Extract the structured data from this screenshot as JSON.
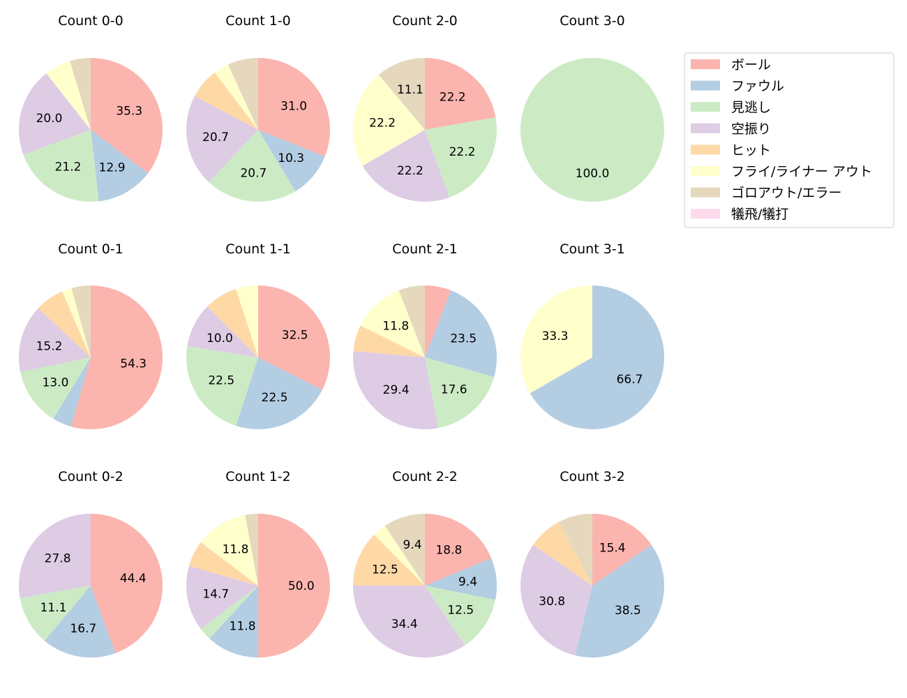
{
  "colors": {
    "ball": "#fbb4ae",
    "foul": "#b3cde3",
    "called_strike": "#ccebc5",
    "swinging_strike": "#decbe4",
    "hit": "#fed9a6",
    "fly_liner_out": "#ffffcc",
    "grounder_error": "#e5d8bd",
    "sacrifice": "#fddaec"
  },
  "legend": {
    "items": [
      {
        "key": "ball",
        "label": "ボール"
      },
      {
        "key": "foul",
        "label": "ファウル"
      },
      {
        "key": "called_strike",
        "label": "見逃し"
      },
      {
        "key": "swinging_strike",
        "label": "空振り"
      },
      {
        "key": "hit",
        "label": "ヒット"
      },
      {
        "key": "fly_liner_out",
        "label": "フライ/ライナー アウト"
      },
      {
        "key": "grounder_error",
        "label": "ゴロアウト/エラー"
      },
      {
        "key": "sacrifice",
        "label": "犠飛/犠打"
      }
    ]
  },
  "chart_data": [
    {
      "type": "pie",
      "title": "Count 0-0",
      "categories": [
        "ball",
        "foul",
        "called_strike",
        "swinging_strike",
        "hit",
        "fly_liner_out",
        "grounder_error",
        "sacrifice"
      ],
      "values": [
        35.3,
        12.9,
        21.2,
        20.0,
        0,
        5.9,
        4.7,
        0
      ],
      "labels": [
        "35.3",
        "12.9",
        "21.2",
        "20.0",
        "",
        "",
        "",
        ""
      ]
    },
    {
      "type": "pie",
      "title": "Count 1-0",
      "categories": [
        "ball",
        "foul",
        "called_strike",
        "swinging_strike",
        "hit",
        "fly_liner_out",
        "grounder_error",
        "sacrifice"
      ],
      "values": [
        31.0,
        10.3,
        20.7,
        20.7,
        6.9,
        3.4,
        6.9,
        0
      ],
      "labels": [
        "31.0",
        "10.3",
        "20.7",
        "20.7",
        "",
        "",
        "",
        ""
      ]
    },
    {
      "type": "pie",
      "title": "Count 2-0",
      "categories": [
        "ball",
        "foul",
        "called_strike",
        "swinging_strike",
        "hit",
        "fly_liner_out",
        "grounder_error",
        "sacrifice"
      ],
      "values": [
        22.2,
        0,
        22.2,
        22.2,
        0,
        22.2,
        11.1,
        0
      ],
      "labels": [
        "22.2",
        "",
        "22.2",
        "22.2",
        "",
        "22.2",
        "11.1",
        ""
      ]
    },
    {
      "type": "pie",
      "title": "Count 3-0",
      "categories": [
        "ball",
        "foul",
        "called_strike",
        "swinging_strike",
        "hit",
        "fly_liner_out",
        "grounder_error",
        "sacrifice"
      ],
      "values": [
        0,
        0,
        100.0,
        0,
        0,
        0,
        0,
        0
      ],
      "labels": [
        "",
        "",
        "100.0",
        "",
        "",
        "",
        "",
        ""
      ]
    },
    {
      "type": "pie",
      "title": "Count 0-1",
      "categories": [
        "ball",
        "foul",
        "called_strike",
        "swinging_strike",
        "hit",
        "fly_liner_out",
        "grounder_error",
        "sacrifice"
      ],
      "values": [
        54.3,
        4.3,
        13.0,
        15.2,
        6.5,
        2.2,
        4.3,
        0
      ],
      "labels": [
        "54.3",
        "",
        "13.0",
        "15.2",
        "",
        "",
        "",
        ""
      ]
    },
    {
      "type": "pie",
      "title": "Count 1-1",
      "categories": [
        "ball",
        "foul",
        "called_strike",
        "swinging_strike",
        "hit",
        "fly_liner_out",
        "grounder_error",
        "sacrifice"
      ],
      "values": [
        32.5,
        22.5,
        22.5,
        10.0,
        7.5,
        5.0,
        0,
        0
      ],
      "labels": [
        "32.5",
        "22.5",
        "22.5",
        "10.0",
        "",
        "",
        "",
        ""
      ]
    },
    {
      "type": "pie",
      "title": "Count 2-1",
      "categories": [
        "ball",
        "foul",
        "called_strike",
        "swinging_strike",
        "hit",
        "fly_liner_out",
        "grounder_error",
        "sacrifice"
      ],
      "values": [
        5.9,
        23.5,
        17.6,
        29.4,
        5.9,
        11.8,
        5.9,
        0
      ],
      "labels": [
        "",
        "23.5",
        "17.6",
        "29.4",
        "",
        "11.8",
        "",
        ""
      ]
    },
    {
      "type": "pie",
      "title": "Count 3-1",
      "categories": [
        "ball",
        "foul",
        "called_strike",
        "swinging_strike",
        "hit",
        "fly_liner_out",
        "grounder_error",
        "sacrifice"
      ],
      "values": [
        0,
        66.7,
        0,
        0,
        0,
        33.3,
        0,
        0
      ],
      "labels": [
        "",
        "66.7",
        "",
        "",
        "",
        "33.3",
        "",
        ""
      ]
    },
    {
      "type": "pie",
      "title": "Count 0-2",
      "categories": [
        "ball",
        "foul",
        "called_strike",
        "swinging_strike",
        "hit",
        "fly_liner_out",
        "grounder_error",
        "sacrifice"
      ],
      "values": [
        44.4,
        16.7,
        11.1,
        27.8,
        0,
        0,
        0,
        0
      ],
      "labels": [
        "44.4",
        "16.7",
        "11.1",
        "27.8",
        "",
        "",
        "",
        ""
      ]
    },
    {
      "type": "pie",
      "title": "Count 1-2",
      "categories": [
        "ball",
        "foul",
        "called_strike",
        "swinging_strike",
        "hit",
        "fly_liner_out",
        "grounder_error",
        "sacrifice"
      ],
      "values": [
        50.0,
        11.8,
        2.9,
        14.7,
        5.9,
        11.8,
        2.9,
        0
      ],
      "labels": [
        "50.0",
        "11.8",
        "",
        "14.7",
        "",
        "11.8",
        "",
        ""
      ]
    },
    {
      "type": "pie",
      "title": "Count 2-2",
      "categories": [
        "ball",
        "foul",
        "called_strike",
        "swinging_strike",
        "hit",
        "fly_liner_out",
        "grounder_error",
        "sacrifice"
      ],
      "values": [
        18.8,
        9.4,
        12.5,
        34.4,
        12.5,
        3.1,
        9.4,
        0
      ],
      "labels": [
        "18.8",
        "9.4",
        "12.5",
        "34.4",
        "12.5",
        "",
        "9.4",
        ""
      ]
    },
    {
      "type": "pie",
      "title": "Count 3-2",
      "categories": [
        "ball",
        "foul",
        "called_strike",
        "swinging_strike",
        "hit",
        "fly_liner_out",
        "grounder_error",
        "sacrifice"
      ],
      "values": [
        15.4,
        38.5,
        0,
        30.8,
        7.7,
        0,
        7.7,
        0
      ],
      "labels": [
        "15.4",
        "38.5",
        "",
        "30.8",
        "",
        "",
        "",
        ""
      ]
    }
  ]
}
